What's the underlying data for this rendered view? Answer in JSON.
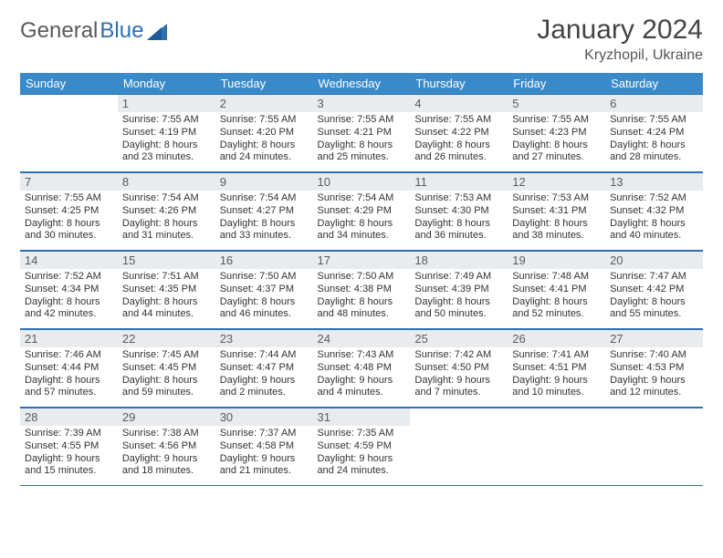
{
  "brand": {
    "word1": "General",
    "word2": "Blue"
  },
  "header": {
    "title": "January 2024",
    "location": "Kryzhopil, Ukraine"
  },
  "colors": {
    "header_bg": "#3a8ac9",
    "rule": "#2f6fb0",
    "daynum_bg": "#e8ecef",
    "text": "#333333"
  },
  "weekdays": [
    "Sunday",
    "Monday",
    "Tuesday",
    "Wednesday",
    "Thursday",
    "Friday",
    "Saturday"
  ],
  "weeks": [
    [
      {
        "n": "",
        "lines": [
          "",
          "",
          "",
          ""
        ]
      },
      {
        "n": "1",
        "lines": [
          "Sunrise: 7:55 AM",
          "Sunset: 4:19 PM",
          "Daylight: 8 hours",
          "and 23 minutes."
        ]
      },
      {
        "n": "2",
        "lines": [
          "Sunrise: 7:55 AM",
          "Sunset: 4:20 PM",
          "Daylight: 8 hours",
          "and 24 minutes."
        ]
      },
      {
        "n": "3",
        "lines": [
          "Sunrise: 7:55 AM",
          "Sunset: 4:21 PM",
          "Daylight: 8 hours",
          "and 25 minutes."
        ]
      },
      {
        "n": "4",
        "lines": [
          "Sunrise: 7:55 AM",
          "Sunset: 4:22 PM",
          "Daylight: 8 hours",
          "and 26 minutes."
        ]
      },
      {
        "n": "5",
        "lines": [
          "Sunrise: 7:55 AM",
          "Sunset: 4:23 PM",
          "Daylight: 8 hours",
          "and 27 minutes."
        ]
      },
      {
        "n": "6",
        "lines": [
          "Sunrise: 7:55 AM",
          "Sunset: 4:24 PM",
          "Daylight: 8 hours",
          "and 28 minutes."
        ]
      }
    ],
    [
      {
        "n": "7",
        "lines": [
          "Sunrise: 7:55 AM",
          "Sunset: 4:25 PM",
          "Daylight: 8 hours",
          "and 30 minutes."
        ]
      },
      {
        "n": "8",
        "lines": [
          "Sunrise: 7:54 AM",
          "Sunset: 4:26 PM",
          "Daylight: 8 hours",
          "and 31 minutes."
        ]
      },
      {
        "n": "9",
        "lines": [
          "Sunrise: 7:54 AM",
          "Sunset: 4:27 PM",
          "Daylight: 8 hours",
          "and 33 minutes."
        ]
      },
      {
        "n": "10",
        "lines": [
          "Sunrise: 7:54 AM",
          "Sunset: 4:29 PM",
          "Daylight: 8 hours",
          "and 34 minutes."
        ]
      },
      {
        "n": "11",
        "lines": [
          "Sunrise: 7:53 AM",
          "Sunset: 4:30 PM",
          "Daylight: 8 hours",
          "and 36 minutes."
        ]
      },
      {
        "n": "12",
        "lines": [
          "Sunrise: 7:53 AM",
          "Sunset: 4:31 PM",
          "Daylight: 8 hours",
          "and 38 minutes."
        ]
      },
      {
        "n": "13",
        "lines": [
          "Sunrise: 7:52 AM",
          "Sunset: 4:32 PM",
          "Daylight: 8 hours",
          "and 40 minutes."
        ]
      }
    ],
    [
      {
        "n": "14",
        "lines": [
          "Sunrise: 7:52 AM",
          "Sunset: 4:34 PM",
          "Daylight: 8 hours",
          "and 42 minutes."
        ]
      },
      {
        "n": "15",
        "lines": [
          "Sunrise: 7:51 AM",
          "Sunset: 4:35 PM",
          "Daylight: 8 hours",
          "and 44 minutes."
        ]
      },
      {
        "n": "16",
        "lines": [
          "Sunrise: 7:50 AM",
          "Sunset: 4:37 PM",
          "Daylight: 8 hours",
          "and 46 minutes."
        ]
      },
      {
        "n": "17",
        "lines": [
          "Sunrise: 7:50 AM",
          "Sunset: 4:38 PM",
          "Daylight: 8 hours",
          "and 48 minutes."
        ]
      },
      {
        "n": "18",
        "lines": [
          "Sunrise: 7:49 AM",
          "Sunset: 4:39 PM",
          "Daylight: 8 hours",
          "and 50 minutes."
        ]
      },
      {
        "n": "19",
        "lines": [
          "Sunrise: 7:48 AM",
          "Sunset: 4:41 PM",
          "Daylight: 8 hours",
          "and 52 minutes."
        ]
      },
      {
        "n": "20",
        "lines": [
          "Sunrise: 7:47 AM",
          "Sunset: 4:42 PM",
          "Daylight: 8 hours",
          "and 55 minutes."
        ]
      }
    ],
    [
      {
        "n": "21",
        "lines": [
          "Sunrise: 7:46 AM",
          "Sunset: 4:44 PM",
          "Daylight: 8 hours",
          "and 57 minutes."
        ]
      },
      {
        "n": "22",
        "lines": [
          "Sunrise: 7:45 AM",
          "Sunset: 4:45 PM",
          "Daylight: 8 hours",
          "and 59 minutes."
        ]
      },
      {
        "n": "23",
        "lines": [
          "Sunrise: 7:44 AM",
          "Sunset: 4:47 PM",
          "Daylight: 9 hours",
          "and 2 minutes."
        ]
      },
      {
        "n": "24",
        "lines": [
          "Sunrise: 7:43 AM",
          "Sunset: 4:48 PM",
          "Daylight: 9 hours",
          "and 4 minutes."
        ]
      },
      {
        "n": "25",
        "lines": [
          "Sunrise: 7:42 AM",
          "Sunset: 4:50 PM",
          "Daylight: 9 hours",
          "and 7 minutes."
        ]
      },
      {
        "n": "26",
        "lines": [
          "Sunrise: 7:41 AM",
          "Sunset: 4:51 PM",
          "Daylight: 9 hours",
          "and 10 minutes."
        ]
      },
      {
        "n": "27",
        "lines": [
          "Sunrise: 7:40 AM",
          "Sunset: 4:53 PM",
          "Daylight: 9 hours",
          "and 12 minutes."
        ]
      }
    ],
    [
      {
        "n": "28",
        "lines": [
          "Sunrise: 7:39 AM",
          "Sunset: 4:55 PM",
          "Daylight: 9 hours",
          "and 15 minutes."
        ]
      },
      {
        "n": "29",
        "lines": [
          "Sunrise: 7:38 AM",
          "Sunset: 4:56 PM",
          "Daylight: 9 hours",
          "and 18 minutes."
        ]
      },
      {
        "n": "30",
        "lines": [
          "Sunrise: 7:37 AM",
          "Sunset: 4:58 PM",
          "Daylight: 9 hours",
          "and 21 minutes."
        ]
      },
      {
        "n": "31",
        "lines": [
          "Sunrise: 7:35 AM",
          "Sunset: 4:59 PM",
          "Daylight: 9 hours",
          "and 24 minutes."
        ]
      },
      {
        "n": "",
        "lines": [
          "",
          "",
          "",
          ""
        ]
      },
      {
        "n": "",
        "lines": [
          "",
          "",
          "",
          ""
        ]
      },
      {
        "n": "",
        "lines": [
          "",
          "",
          "",
          ""
        ]
      }
    ]
  ]
}
